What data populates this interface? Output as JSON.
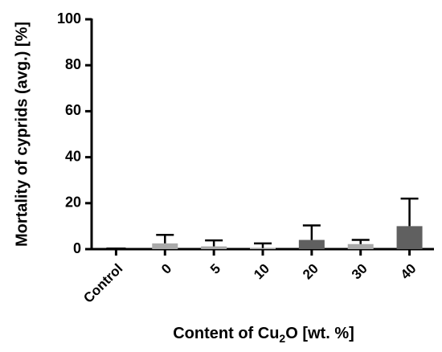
{
  "chart_data": {
    "type": "bar",
    "xlabel_main": "Content of Cu",
    "xlabel_sub": "2",
    "xlabel_tail": "O [wt. %]",
    "ylabel": "Mortality of cyprids (avg.) [%]",
    "ylim": [
      0,
      100
    ],
    "yticks": [
      "0",
      "20",
      "40",
      "60",
      "80",
      "100"
    ],
    "categories": [
      "Control",
      "0",
      "5",
      "10",
      "20",
      "30",
      "40"
    ],
    "values": [
      0,
      2.5,
      1.2,
      0.5,
      4.0,
      2.2,
      10.0
    ],
    "errors": [
      0,
      3.7,
      2.6,
      2.0,
      6.3,
      1.8,
      12.0
    ],
    "colors": [
      "#000000",
      "#a9a9a9",
      "#a9a9a9",
      "#a9a9a9",
      "#606060",
      "#a9a9a9",
      "#606060"
    ],
    "grid": false
  }
}
